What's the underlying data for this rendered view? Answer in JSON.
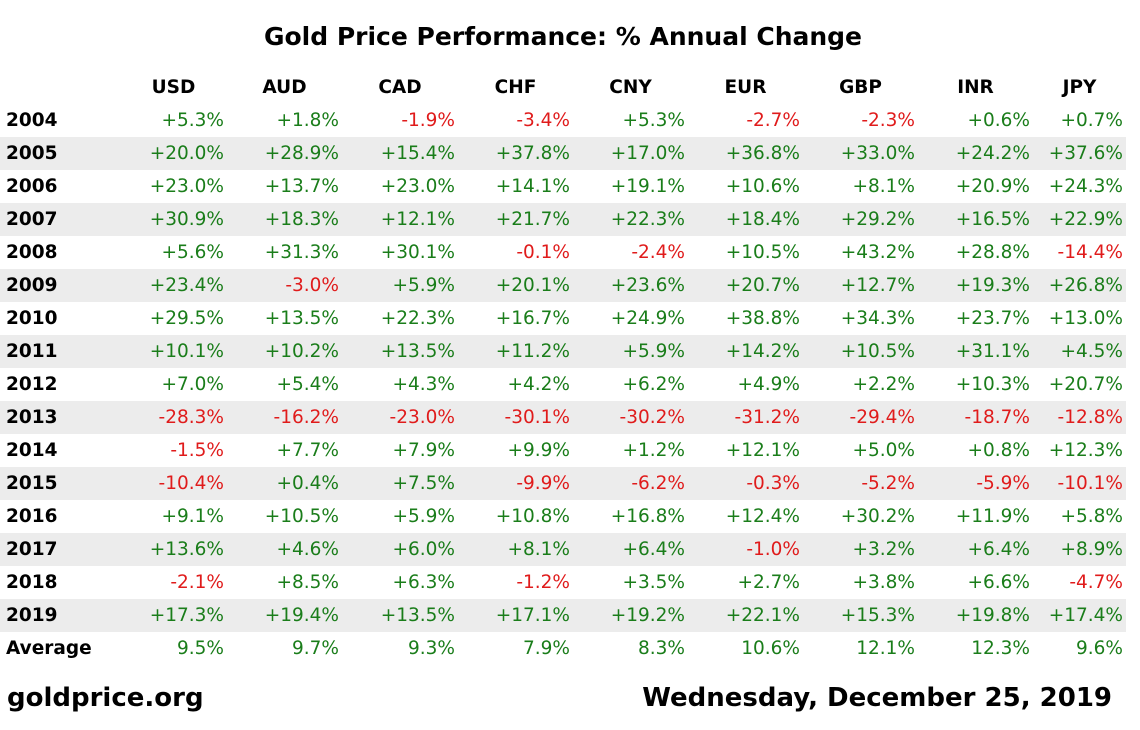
{
  "colors": {
    "positive": "#1a7d1a",
    "negative": "#e01b1b",
    "average": "#1a7d1a",
    "row_stripe": "#ececec"
  },
  "chart_data": {
    "type": "table",
    "title": "Gold Price Performance: % Annual Change",
    "columns": [
      "USD",
      "AUD",
      "CAD",
      "CHF",
      "CNY",
      "EUR",
      "GBP",
      "INR",
      "JPY"
    ],
    "rows": [
      {
        "label": "2004",
        "values": [
          "+5.3%",
          "+1.8%",
          "-1.9%",
          "-3.4%",
          "+5.3%",
          "-2.7%",
          "-2.3%",
          "+0.6%",
          "+0.7%"
        ]
      },
      {
        "label": "2005",
        "values": [
          "+20.0%",
          "+28.9%",
          "+15.4%",
          "+37.8%",
          "+17.0%",
          "+36.8%",
          "+33.0%",
          "+24.2%",
          "+37.6%"
        ]
      },
      {
        "label": "2006",
        "values": [
          "+23.0%",
          "+13.7%",
          "+23.0%",
          "+14.1%",
          "+19.1%",
          "+10.6%",
          "+8.1%",
          "+20.9%",
          "+24.3%"
        ]
      },
      {
        "label": "2007",
        "values": [
          "+30.9%",
          "+18.3%",
          "+12.1%",
          "+21.7%",
          "+22.3%",
          "+18.4%",
          "+29.2%",
          "+16.5%",
          "+22.9%"
        ]
      },
      {
        "label": "2008",
        "values": [
          "+5.6%",
          "+31.3%",
          "+30.1%",
          "-0.1%",
          "-2.4%",
          "+10.5%",
          "+43.2%",
          "+28.8%",
          "-14.4%"
        ]
      },
      {
        "label": "2009",
        "values": [
          "+23.4%",
          "-3.0%",
          "+5.9%",
          "+20.1%",
          "+23.6%",
          "+20.7%",
          "+12.7%",
          "+19.3%",
          "+26.8%"
        ]
      },
      {
        "label": "2010",
        "values": [
          "+29.5%",
          "+13.5%",
          "+22.3%",
          "+16.7%",
          "+24.9%",
          "+38.8%",
          "+34.3%",
          "+23.7%",
          "+13.0%"
        ]
      },
      {
        "label": "2011",
        "values": [
          "+10.1%",
          "+10.2%",
          "+13.5%",
          "+11.2%",
          "+5.9%",
          "+14.2%",
          "+10.5%",
          "+31.1%",
          "+4.5%"
        ]
      },
      {
        "label": "2012",
        "values": [
          "+7.0%",
          "+5.4%",
          "+4.3%",
          "+4.2%",
          "+6.2%",
          "+4.9%",
          "+2.2%",
          "+10.3%",
          "+20.7%"
        ]
      },
      {
        "label": "2013",
        "values": [
          "-28.3%",
          "-16.2%",
          "-23.0%",
          "-30.1%",
          "-30.2%",
          "-31.2%",
          "-29.4%",
          "-18.7%",
          "-12.8%"
        ]
      },
      {
        "label": "2014",
        "values": [
          "-1.5%",
          "+7.7%",
          "+7.9%",
          "+9.9%",
          "+1.2%",
          "+12.1%",
          "+5.0%",
          "+0.8%",
          "+12.3%"
        ]
      },
      {
        "label": "2015",
        "values": [
          "-10.4%",
          "+0.4%",
          "+7.5%",
          "-9.9%",
          "-6.2%",
          "-0.3%",
          "-5.2%",
          "-5.9%",
          "-10.1%"
        ]
      },
      {
        "label": "2016",
        "values": [
          "+9.1%",
          "+10.5%",
          "+5.9%",
          "+10.8%",
          "+16.8%",
          "+12.4%",
          "+30.2%",
          "+11.9%",
          "+5.8%"
        ]
      },
      {
        "label": "2017",
        "values": [
          "+13.6%",
          "+4.6%",
          "+6.0%",
          "+8.1%",
          "+6.4%",
          "-1.0%",
          "+3.2%",
          "+6.4%",
          "+8.9%"
        ]
      },
      {
        "label": "2018",
        "values": [
          "-2.1%",
          "+8.5%",
          "+6.3%",
          "-1.2%",
          "+3.5%",
          "+2.7%",
          "+3.8%",
          "+6.6%",
          "-4.7%"
        ]
      },
      {
        "label": "2019",
        "values": [
          "+17.3%",
          "+19.4%",
          "+13.5%",
          "+17.1%",
          "+19.2%",
          "+22.1%",
          "+15.3%",
          "+19.8%",
          "+17.4%"
        ]
      }
    ],
    "average": {
      "label": "Average",
      "values": [
        "9.5%",
        "9.7%",
        "9.3%",
        "7.9%",
        "8.3%",
        "10.6%",
        "12.1%",
        "12.3%",
        "9.6%"
      ]
    }
  },
  "footer": {
    "source": "goldprice.org",
    "date": "Wednesday, December 25, 2019"
  }
}
